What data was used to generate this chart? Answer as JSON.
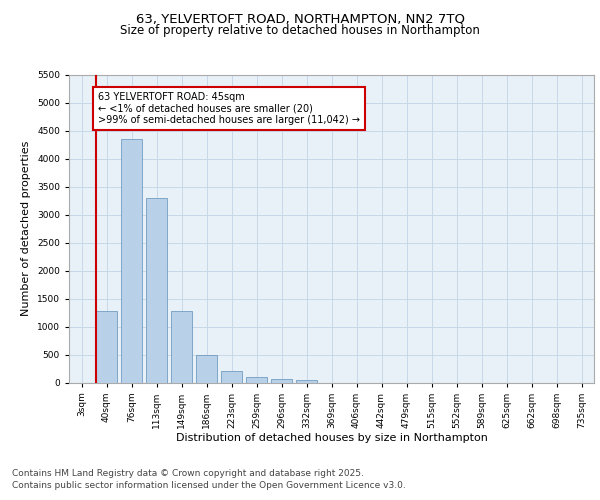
{
  "title": "63, YELVERTOFT ROAD, NORTHAMPTON, NN2 7TQ",
  "subtitle": "Size of property relative to detached houses in Northampton",
  "xlabel": "Distribution of detached houses by size in Northampton",
  "ylabel": "Number of detached properties",
  "categories": [
    "3sqm",
    "40sqm",
    "76sqm",
    "113sqm",
    "149sqm",
    "186sqm",
    "223sqm",
    "259sqm",
    "296sqm",
    "332sqm",
    "369sqm",
    "406sqm",
    "442sqm",
    "479sqm",
    "515sqm",
    "552sqm",
    "589sqm",
    "625sqm",
    "662sqm",
    "698sqm",
    "735sqm"
  ],
  "bar_values": [
    0,
    1270,
    4350,
    3300,
    1280,
    500,
    210,
    90,
    55,
    40,
    0,
    0,
    0,
    0,
    0,
    0,
    0,
    0,
    0,
    0,
    0
  ],
  "bar_color": "#b8d0e8",
  "bar_edge_color": "#6090b8",
  "vline_color": "#cc0000",
  "annotation_text": "63 YELVERTOFT ROAD: 45sqm\n← <1% of detached houses are smaller (20)\n>99% of semi-detached houses are larger (11,042) →",
  "annotation_box_color": "#cc0000",
  "ylim": [
    0,
    5500
  ],
  "yticks": [
    0,
    500,
    1000,
    1500,
    2000,
    2500,
    3000,
    3500,
    4000,
    4500,
    5000,
    5500
  ],
  "grid_color": "#c8d8e8",
  "background_color": "#e8f0f8",
  "footer_line1": "Contains HM Land Registry data © Crown copyright and database right 2025.",
  "footer_line2": "Contains public sector information licensed under the Open Government Licence v3.0.",
  "title_fontsize": 9.5,
  "subtitle_fontsize": 8.5,
  "axis_label_fontsize": 8,
  "tick_fontsize": 6.5,
  "annotation_fontsize": 7,
  "footer_fontsize": 6.5
}
